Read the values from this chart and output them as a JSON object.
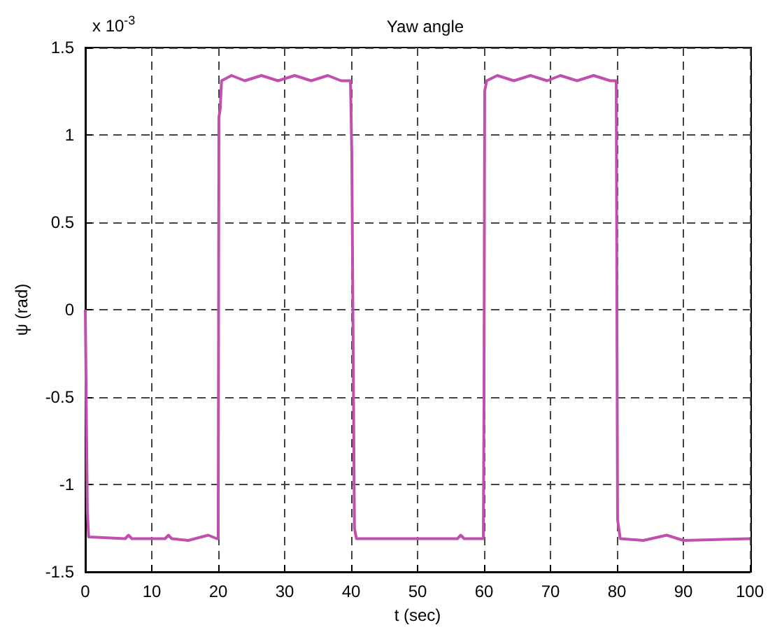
{
  "chart_data": {
    "type": "line",
    "title": "Yaw angle",
    "xlabel": "t (sec)",
    "ylabel": "ψ (rad)",
    "annotations": [
      "x 10$^{-3}$"
    ],
    "xlim": [
      0,
      100
    ],
    "xticks": [
      0,
      10,
      20,
      30,
      40,
      50,
      60,
      70,
      80,
      90,
      100
    ],
    "ylim": [
      -1.5,
      1.5
    ],
    "yticks": [
      -1.5,
      -1,
      -0.5,
      0,
      0.5,
      1,
      1.5
    ],
    "grid": true,
    "line_style": "solid",
    "series": [
      {
        "color": "#c04fb0",
        "x": [
          0,
          0.3,
          0.5,
          6,
          6.5,
          7,
          12,
          12.5,
          13,
          15.5,
          18.5,
          19.8,
          20,
          20.1,
          20.3,
          20.5,
          22,
          24,
          26.5,
          29,
          31.5,
          34,
          36.5,
          38.5,
          39.9,
          40.1,
          40.5,
          40.8,
          56,
          56.5,
          57,
          59.9,
          60,
          60.1,
          60.4,
          62,
          64.5,
          67,
          69.5,
          71.5,
          74,
          76.5,
          79,
          79.9,
          80.1,
          80.5,
          84,
          87.5,
          90,
          100
        ],
        "values": [
          0,
          -1.15,
          -1.3,
          -1.31,
          -1.29,
          -1.31,
          -1.31,
          -1.29,
          -1.31,
          -1.32,
          -1.29,
          -1.31,
          -1.31,
          1.1,
          1.15,
          1.31,
          1.34,
          1.31,
          1.34,
          1.31,
          1.34,
          1.31,
          1.34,
          1.31,
          1.31,
          0.9,
          -1.25,
          -1.31,
          -1.31,
          -1.29,
          -1.31,
          -1.31,
          -0.5,
          1.25,
          1.31,
          1.34,
          1.31,
          1.34,
          1.31,
          1.34,
          1.31,
          1.34,
          1.31,
          1.31,
          -1.2,
          -1.31,
          -1.32,
          -1.29,
          -1.32,
          -1.31
        ]
      }
    ]
  }
}
